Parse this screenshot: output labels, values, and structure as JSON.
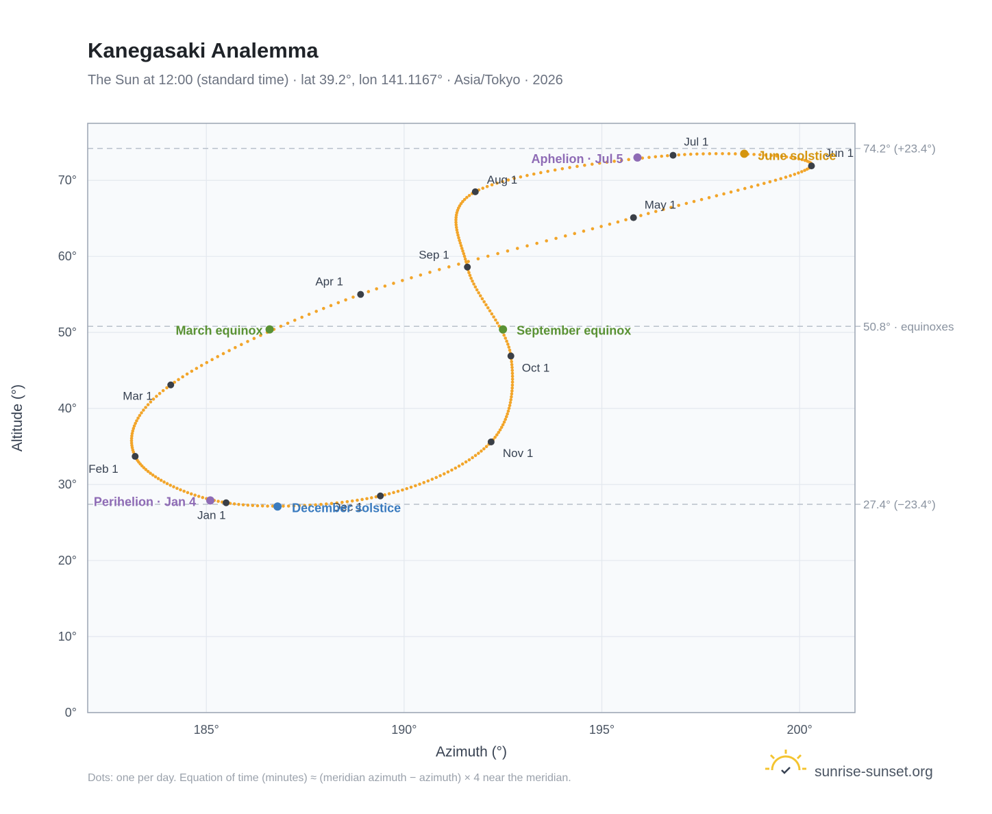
{
  "header": {
    "title": "Kanegasaki Analemma",
    "subtitle": "The Sun at 12:00 (standard time) · lat 39.2°, lon 141.1167° · Asia/Tokyo · 2026"
  },
  "footer": {
    "note": "Dots: one per day. Equation of time (minutes) ≈ (meridian azimuth − azimuth) × 4 near the meridian.",
    "brand": "sunrise-sunset.org"
  },
  "colors": {
    "path": "#f2a52a",
    "month_marker": "#3a3f47",
    "equinox": "#5a9234",
    "june_solstice": "#d4950f",
    "december_solstice": "#3a7bbf",
    "perihelion": "#8e6bb5",
    "aphelion": "#8e6bb5",
    "plot_bg": "#f8fafc",
    "grid": "#e3e8ee",
    "frame": "#9aa4b2",
    "reference": "#b8c0ca"
  },
  "chart_data": {
    "type": "scatter",
    "xlabel": "Azimuth (°)",
    "ylabel": "Altitude (°)",
    "xlim": [
      182,
      201.4
    ],
    "ylim": [
      0,
      77.5
    ],
    "xticks": [
      185,
      190,
      195,
      200
    ],
    "xtick_labels": [
      "185°",
      "190°",
      "195°",
      "200°"
    ],
    "yticks": [
      0,
      10,
      20,
      30,
      40,
      50,
      60,
      70
    ],
    "ytick_labels": [
      "0°",
      "10°",
      "20°",
      "30°",
      "40°",
      "50°",
      "60°",
      "70°"
    ],
    "grid": true,
    "reference_lines": [
      {
        "y": 74.2,
        "label": "74.2° (+23.4°)"
      },
      {
        "y": 50.8,
        "label": "50.8° · equinoxes"
      },
      {
        "y": 27.4,
        "label": "27.4° (−23.4°)"
      }
    ],
    "month_markers": [
      {
        "label": "Jan 1",
        "doy": 1,
        "az": 185.5,
        "alt": 27.6
      },
      {
        "label": "Feb 1",
        "doy": 32,
        "az": 183.2,
        "alt": 33.7
      },
      {
        "label": "Mar 1",
        "doy": 60,
        "az": 184.1,
        "alt": 43.1
      },
      {
        "label": "Apr 1",
        "doy": 91,
        "az": 188.9,
        "alt": 55.0
      },
      {
        "label": "May 1",
        "doy": 121,
        "az": 195.8,
        "alt": 65.1
      },
      {
        "label": "Jun 1",
        "doy": 152,
        "az": 200.3,
        "alt": 71.9
      },
      {
        "label": "Jul 1",
        "doy": 182,
        "az": 196.8,
        "alt": 73.3
      },
      {
        "label": "Aug 1",
        "doy": 213,
        "az": 191.8,
        "alt": 68.5
      },
      {
        "label": "Sep 1",
        "doy": 244,
        "az": 191.6,
        "alt": 58.6
      },
      {
        "label": "Oct 1",
        "doy": 274,
        "az": 192.7,
        "alt": 46.9
      },
      {
        "label": "Nov 1",
        "doy": 305,
        "az": 192.2,
        "alt": 35.6
      },
      {
        "label": "Dec 1",
        "doy": 335,
        "az": 189.4,
        "alt": 28.5
      }
    ],
    "events": [
      {
        "label": "March equinox",
        "az": 186.6,
        "alt": 50.4,
        "color": "#5a9234"
      },
      {
        "label": "September equinox",
        "az": 192.5,
        "alt": 50.4,
        "color": "#5a9234"
      },
      {
        "label": "June solstice",
        "az": 198.6,
        "alt": 73.5,
        "color": "#d4950f"
      },
      {
        "label": "December solstice",
        "az": 186.8,
        "alt": 27.1,
        "color": "#3a7bbf"
      },
      {
        "label": "Perihelion · Jan 4",
        "az": 185.1,
        "alt": 27.9,
        "color": "#8e6bb5"
      },
      {
        "label": "Aphelion · Jul 5",
        "az": 195.9,
        "alt": 73.0,
        "color": "#8e6bb5"
      }
    ]
  }
}
